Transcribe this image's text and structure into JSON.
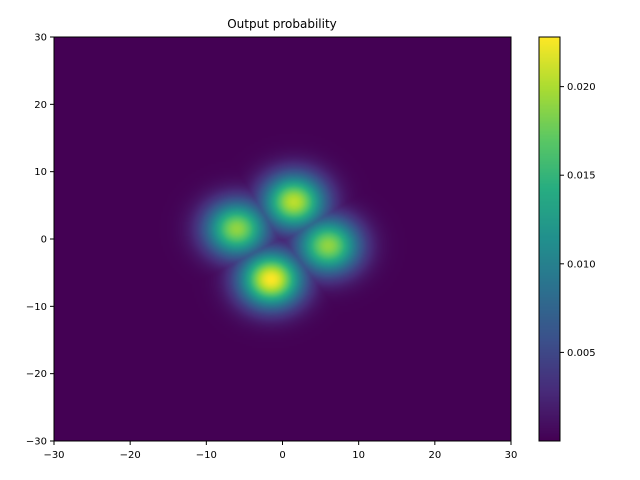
{
  "chart_data": {
    "type": "heatmap",
    "title": "Output probability",
    "xlabel": "",
    "ylabel": "",
    "xlim": [
      -30,
      30
    ],
    "ylim": [
      -30,
      30
    ],
    "x_ticks": [
      -30,
      -20,
      -10,
      0,
      10,
      20,
      30
    ],
    "y_ticks": [
      -30,
      -20,
      -10,
      0,
      10,
      20,
      30
    ],
    "colormap": "viridis",
    "colorbar": {
      "range": [
        0.0,
        0.0228
      ],
      "ticks": [
        0.005,
        0.01,
        0.015,
        0.02
      ],
      "tick_labels": [
        "0.005",
        "0.010",
        "0.015",
        "0.020"
      ]
    },
    "blobs": [
      {
        "x": 1.5,
        "y": 5.5,
        "peak": 0.0205
      },
      {
        "x": 6.0,
        "y": -1.0,
        "peak": 0.019
      },
      {
        "x": -6.0,
        "y": 1.5,
        "peak": 0.019
      },
      {
        "x": -1.5,
        "y": -6.0,
        "peak": 0.0228
      }
    ],
    "grid": false
  }
}
